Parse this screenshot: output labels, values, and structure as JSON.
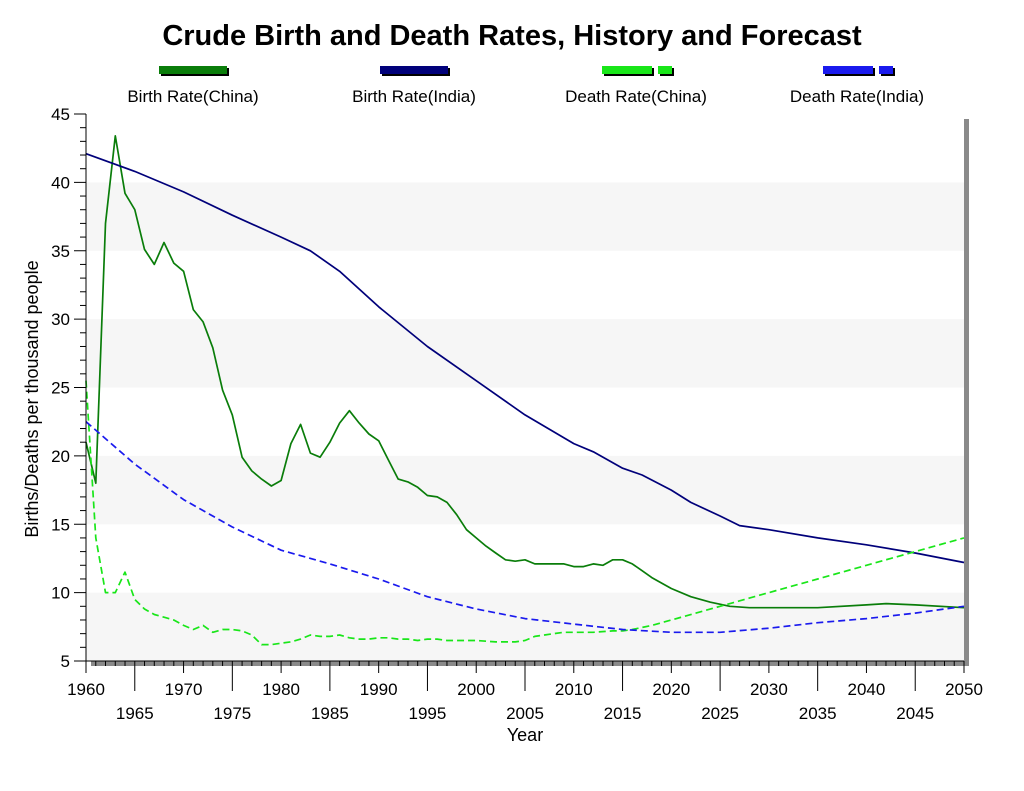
{
  "chart_data": {
    "type": "line",
    "title": "Crude Birth and Death Rates, History and Forecast",
    "xlabel": "Year",
    "ylabel": "Births/Deaths per thousand people",
    "xlim": [
      1960,
      2050
    ],
    "ylim": [
      5,
      45
    ],
    "x_ticks_upper": [
      "1960",
      "1970",
      "1980",
      "1990",
      "2000",
      "2010",
      "2020",
      "2030",
      "2040",
      "2050"
    ],
    "x_ticks_lower": [
      "1965",
      "1975",
      "1985",
      "1995",
      "2005",
      "2015",
      "2025",
      "2035",
      "2045"
    ],
    "y_ticks": [
      "5",
      "10",
      "15",
      "20",
      "25",
      "30",
      "35",
      "40",
      "45"
    ],
    "grid": "alternating horizontal bands",
    "legend_position": "top",
    "series": [
      {
        "name": "Birth Rate(China)",
        "color": "#0a7d0a",
        "dash": "solid",
        "x": [
          1960,
          1961,
          1962,
          1963,
          1964,
          1965,
          1966,
          1967,
          1968,
          1969,
          1970,
          1971,
          1972,
          1973,
          1974,
          1975,
          1976,
          1977,
          1978,
          1979,
          1980,
          1981,
          1982,
          1983,
          1984,
          1985,
          1986,
          1987,
          1988,
          1989,
          1990,
          1991,
          1992,
          1993,
          1994,
          1995,
          1996,
          1997,
          1998,
          1999,
          2000,
          2001,
          2002,
          2003,
          2004,
          2005,
          2006,
          2007,
          2008,
          2009,
          2010,
          2011,
          2012,
          2013,
          2014,
          2015,
          2016,
          2017,
          2018,
          2020,
          2022,
          2024,
          2026,
          2028,
          2030,
          2035,
          2040,
          2042,
          2045,
          2050
        ],
        "y": [
          21.0,
          18.0,
          37.0,
          43.4,
          39.2,
          38.0,
          35.1,
          34.0,
          35.6,
          34.1,
          33.5,
          30.7,
          29.8,
          27.9,
          24.8,
          23.0,
          19.9,
          18.9,
          18.3,
          17.8,
          18.2,
          20.9,
          22.3,
          20.2,
          19.9,
          21.0,
          22.4,
          23.3,
          22.4,
          21.6,
          21.1,
          19.7,
          18.3,
          18.1,
          17.7,
          17.1,
          17.0,
          16.6,
          15.7,
          14.6,
          14.0,
          13.4,
          12.9,
          12.4,
          12.3,
          12.4,
          12.1,
          12.1,
          12.1,
          12.1,
          11.9,
          11.9,
          12.1,
          12.0,
          12.4,
          12.4,
          12.1,
          11.6,
          11.1,
          10.3,
          9.7,
          9.3,
          9.0,
          8.9,
          8.9,
          8.9,
          9.1,
          9.2,
          9.1,
          8.9
        ]
      },
      {
        "name": "Birth Rate(India)",
        "color": "#00007a",
        "dash": "solid",
        "x": [
          1960,
          1965,
          1970,
          1975,
          1980,
          1983,
          1986,
          1990,
          1995,
          2000,
          2005,
          2010,
          2012,
          2015,
          2017,
          2020,
          2022,
          2025,
          2027,
          2030,
          2035,
          2040,
          2045,
          2050
        ],
        "y": [
          42.1,
          40.8,
          39.3,
          37.6,
          36.0,
          35.0,
          33.5,
          30.9,
          28.0,
          25.5,
          23.0,
          20.9,
          20.3,
          19.1,
          18.6,
          17.5,
          16.6,
          15.6,
          14.9,
          14.6,
          14.0,
          13.5,
          12.9,
          12.2
        ]
      },
      {
        "name": "Death Rate(China)",
        "color": "#19e619",
        "dash": "dashed",
        "x": [
          1960,
          1961,
          1962,
          1963,
          1964,
          1965,
          1966,
          1967,
          1968,
          1969,
          1970,
          1971,
          1972,
          1973,
          1974,
          1975,
          1976,
          1977,
          1978,
          1979,
          1980,
          1981,
          1982,
          1983,
          1984,
          1985,
          1986,
          1987,
          1988,
          1989,
          1990,
          1991,
          1992,
          1993,
          1994,
          1995,
          1996,
          1997,
          1998,
          1999,
          2000,
          2002,
          2004,
          2005,
          2006,
          2007,
          2008,
          2009,
          2010,
          2012,
          2014,
          2015,
          2016,
          2018,
          2020,
          2025,
          2030,
          2035,
          2040,
          2045,
          2050
        ],
        "y": [
          25.5,
          14.0,
          10.0,
          10.0,
          11.5,
          9.5,
          8.8,
          8.4,
          8.2,
          8.0,
          7.6,
          7.3,
          7.6,
          7.1,
          7.3,
          7.3,
          7.2,
          6.9,
          6.2,
          6.2,
          6.3,
          6.4,
          6.6,
          6.9,
          6.8,
          6.8,
          6.9,
          6.7,
          6.6,
          6.6,
          6.7,
          6.7,
          6.6,
          6.6,
          6.5,
          6.6,
          6.6,
          6.5,
          6.5,
          6.5,
          6.5,
          6.4,
          6.4,
          6.5,
          6.8,
          6.9,
          7.0,
          7.1,
          7.1,
          7.1,
          7.2,
          7.2,
          7.3,
          7.6,
          8.0,
          9.0,
          10.0,
          11.0,
          12.0,
          13.0,
          14.0
        ]
      },
      {
        "name": "Death Rate(India)",
        "color": "#1a1aee",
        "dash": "dashed",
        "x": [
          1960,
          1965,
          1970,
          1975,
          1980,
          1985,
          1990,
          1995,
          2000,
          2005,
          2010,
          2015,
          2020,
          2025,
          2030,
          2035,
          2040,
          2045,
          2050
        ],
        "y": [
          22.5,
          19.4,
          16.8,
          14.8,
          13.1,
          12.1,
          11.0,
          9.7,
          8.8,
          8.1,
          7.7,
          7.3,
          7.1,
          7.1,
          7.4,
          7.8,
          8.1,
          8.5,
          9.0
        ]
      }
    ]
  }
}
